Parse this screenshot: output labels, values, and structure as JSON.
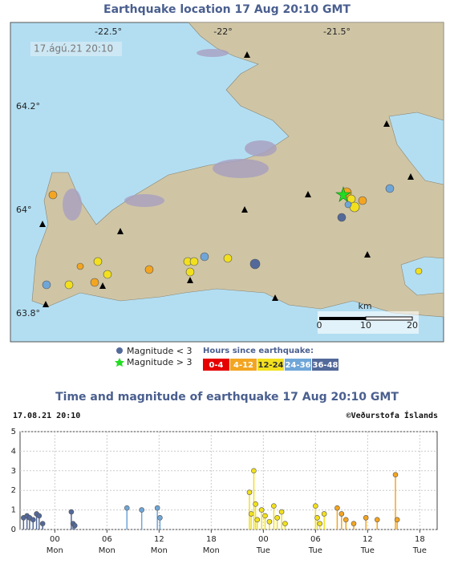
{
  "map": {
    "title": "Earthquake location   17 Aug 20:10 GMT",
    "stamp": "17.ágú.21  20:10",
    "lon_labels": [
      "-22.5°",
      "-22°",
      "-21.5°"
    ],
    "lat_labels": [
      "64.2°",
      "64°",
      "63.8°"
    ],
    "legend_small": "Magnitude < 3",
    "legend_large": "Magnitude > 3",
    "legend_hours": "Hours since earthquake:",
    "scale_unit": "km",
    "scale_labels": [
      "0",
      "10",
      "20"
    ]
  },
  "chart_data": {
    "type": "stem",
    "title": "Time and magnitude of earthquake   17 Aug 20:10 GMT",
    "stamp": "17.08.21 20:10",
    "credit": "©Veðurstofa Íslands",
    "xlim": [
      -4,
      44
    ],
    "ylim": [
      0,
      5
    ],
    "xticks": [
      {
        "value": 0,
        "label": "00"
      },
      {
        "value": 6,
        "label": "06"
      },
      12,
      18,
      {
        "value": 24,
        "label": "00"
      },
      {
        "value": 30,
        "label": "06"
      },
      {
        "value": 36,
        "label": "12"
      },
      {
        "value": 42,
        "label": "18"
      }
    ],
    "xtick_days": [
      "Mon",
      "Mon",
      "Mon",
      "Mon",
      "Tue",
      "Tue",
      "Tue",
      "Tue"
    ],
    "yticks": [
      0,
      1,
      2,
      3,
      4,
      5
    ],
    "grid": true,
    "series": [
      {
        "name": "0-4",
        "color": "#e60000",
        "x": [],
        "values": []
      },
      {
        "name": "4-12",
        "color": "#f3a521",
        "x": [
          32.5,
          33.0,
          33.5,
          34.4,
          35.8,
          37.1,
          39.2,
          39.4
        ],
        "values": [
          1.1,
          0.8,
          0.5,
          0.3,
          0.6,
          0.5,
          2.8,
          0.5
        ]
      },
      {
        "name": "12-24",
        "color": "#f2e01e",
        "x": [
          22.4,
          22.6,
          22.9,
          23.1,
          23.3,
          23.8,
          24.2,
          24.7,
          25.2,
          25.6,
          26.1,
          26.5,
          30.0,
          30.2,
          30.5,
          31.0
        ],
        "values": [
          1.9,
          0.8,
          3.0,
          1.3,
          0.5,
          1.0,
          0.7,
          0.4,
          1.2,
          0.6,
          0.9,
          0.3,
          1.2,
          0.6,
          0.3,
          0.8
        ]
      },
      {
        "name": "24-36",
        "color": "#6fa6d8",
        "x": [
          8.3,
          10.0,
          11.8,
          12.1
        ],
        "values": [
          1.1,
          1.0,
          1.1,
          0.6
        ]
      },
      {
        "name": "36-48",
        "color": "#52699a",
        "x": [
          -3.6,
          -3.2,
          -2.9,
          -2.5,
          -2.1,
          -1.8,
          -1.4,
          1.9,
          2.1,
          2.3
        ],
        "values": [
          0.6,
          0.7,
          0.6,
          0.5,
          0.8,
          0.7,
          0.3,
          0.9,
          0.3,
          0.2
        ]
      }
    ]
  }
}
